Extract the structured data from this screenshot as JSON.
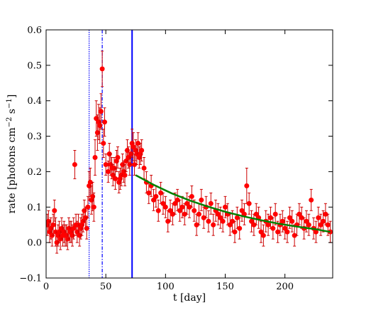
{
  "chart_data": {
    "type": "scatter",
    "title": "",
    "xlabel": "t [day]",
    "ylabel_parts": {
      "base": "rate [photons cm",
      "exp1": "−2",
      "mid": " s",
      "exp2": "−1",
      "end": "]"
    },
    "xlim": [
      0,
      240
    ],
    "ylim": [
      -0.1,
      0.6
    ],
    "xticks": [
      0,
      50,
      100,
      150,
      200
    ],
    "xtick_labels": [
      "0",
      "50",
      "100",
      "150",
      "200"
    ],
    "yticks": [
      -0.1,
      0.0,
      0.1,
      0.2,
      0.3,
      0.4,
      0.5,
      0.6
    ],
    "ytick_labels": [
      "−0.1",
      "0.0",
      "0.1",
      "0.2",
      "0.3",
      "0.4",
      "0.5",
      "0.6"
    ],
    "grid": false,
    "colors": {
      "points": "#ff0000",
      "errorbars": "#cc0000",
      "fit": "#008000",
      "vlines": "#0000ff"
    },
    "vlines": [
      {
        "x": 36,
        "style": "dotted"
      },
      {
        "x": 47,
        "style": "dashdot"
      },
      {
        "x": 72,
        "style": "solid"
      }
    ],
    "fit_curve": {
      "x": [
        75,
        90,
        105,
        120,
        135,
        150,
        165,
        180,
        195,
        210,
        225,
        238
      ],
      "y": [
        0.19,
        0.163,
        0.139,
        0.119,
        0.102,
        0.087,
        0.074,
        0.063,
        0.053,
        0.045,
        0.038,
        0.03
      ]
    },
    "series": [
      {
        "x": [
          1,
          2,
          3,
          4,
          5,
          6,
          7,
          8,
          9,
          10,
          11,
          12,
          13,
          14,
          15,
          16,
          17,
          18,
          19,
          20,
          21,
          22,
          23,
          24,
          25,
          26,
          27,
          28,
          29,
          30,
          31,
          32,
          33,
          34,
          35,
          36,
          37,
          38,
          39,
          40,
          41,
          42,
          43,
          44,
          45,
          46,
          47,
          48,
          49,
          50,
          52,
          53,
          54,
          55,
          56,
          57,
          58,
          59,
          60,
          61,
          62,
          63,
          64,
          65,
          66,
          67,
          68,
          69,
          70,
          71,
          72,
          73,
          74,
          75,
          76,
          77,
          78,
          79,
          80,
          82,
          84,
          86,
          88,
          90,
          92,
          94,
          96,
          98,
          100,
          102,
          104,
          106,
          108,
          110,
          112,
          114,
          116,
          118,
          120,
          122,
          124,
          126,
          128,
          130,
          132,
          134,
          136,
          138,
          140,
          142,
          144,
          146,
          148,
          150,
          152,
          154,
          156,
          158,
          160,
          162,
          164,
          166,
          168,
          170,
          172,
          174,
          176,
          178,
          180,
          182,
          184,
          186,
          188,
          190,
          192,
          194,
          196,
          198,
          200,
          202,
          204,
          206,
          208,
          210,
          212,
          214,
          216,
          218,
          220,
          222,
          224,
          226,
          228,
          230,
          232,
          234,
          236,
          238
        ],
        "y": [
          0.05,
          0.06,
          0.03,
          0.04,
          0.02,
          0.05,
          0.09,
          0.03,
          0.0,
          0.02,
          0.03,
          0.01,
          0.04,
          0.02,
          0.03,
          0.02,
          0.02,
          0.01,
          0.04,
          0.03,
          0.03,
          0.02,
          0.04,
          0.22,
          0.05,
          0.03,
          0.05,
          0.02,
          0.04,
          0.05,
          0.06,
          0.09,
          0.07,
          0.04,
          0.1,
          0.16,
          0.17,
          0.12,
          0.13,
          0.1,
          0.24,
          0.35,
          0.31,
          0.34,
          0.33,
          0.37,
          0.49,
          0.28,
          0.34,
          0.22,
          0.2,
          0.25,
          0.22,
          0.21,
          0.19,
          0.21,
          0.18,
          0.23,
          0.24,
          0.17,
          0.18,
          0.19,
          0.22,
          0.2,
          0.19,
          0.23,
          0.26,
          0.24,
          0.22,
          0.25,
          0.28,
          0.27,
          0.22,
          0.26,
          0.25,
          0.28,
          0.24,
          0.25,
          0.26,
          0.21,
          0.17,
          0.14,
          0.16,
          0.12,
          0.13,
          0.09,
          0.14,
          0.11,
          0.1,
          0.06,
          0.09,
          0.08,
          0.11,
          0.12,
          0.09,
          0.1,
          0.08,
          0.11,
          0.1,
          0.13,
          0.09,
          0.05,
          0.08,
          0.12,
          0.07,
          0.1,
          0.06,
          0.11,
          0.05,
          0.09,
          0.08,
          0.07,
          0.06,
          0.1,
          0.08,
          0.05,
          0.06,
          0.03,
          0.07,
          0.04,
          0.09,
          0.08,
          0.16,
          0.11,
          0.06,
          0.05,
          0.08,
          0.07,
          0.03,
          0.02,
          0.06,
          0.05,
          0.07,
          0.04,
          0.08,
          0.03,
          0.05,
          0.06,
          0.04,
          0.03,
          0.07,
          0.06,
          0.02,
          0.05,
          0.08,
          0.07,
          0.04,
          0.06,
          0.05,
          0.12,
          0.04,
          0.03,
          0.07,
          0.05,
          0.06,
          0.08,
          0.05,
          0.03
        ],
        "err": [
          0.03,
          0.03,
          0.03,
          0.03,
          0.03,
          0.03,
          0.03,
          0.04,
          0.03,
          0.03,
          0.03,
          0.03,
          0.03,
          0.03,
          0.03,
          0.03,
          0.03,
          0.03,
          0.03,
          0.03,
          0.03,
          0.03,
          0.03,
          0.04,
          0.03,
          0.03,
          0.03,
          0.03,
          0.03,
          0.03,
          0.03,
          0.03,
          0.03,
          0.03,
          0.03,
          0.04,
          0.04,
          0.04,
          0.04,
          0.04,
          0.05,
          0.05,
          0.05,
          0.05,
          0.05,
          0.05,
          0.05,
          0.04,
          0.04,
          0.03,
          0.03,
          0.03,
          0.03,
          0.03,
          0.03,
          0.03,
          0.03,
          0.03,
          0.03,
          0.03,
          0.03,
          0.03,
          0.03,
          0.03,
          0.03,
          0.03,
          0.03,
          0.03,
          0.03,
          0.03,
          0.04,
          0.04,
          0.03,
          0.03,
          0.03,
          0.03,
          0.03,
          0.03,
          0.03,
          0.03,
          0.03,
          0.03,
          0.03,
          0.03,
          0.03,
          0.03,
          0.03,
          0.03,
          0.03,
          0.03,
          0.03,
          0.03,
          0.03,
          0.03,
          0.03,
          0.03,
          0.03,
          0.03,
          0.03,
          0.03,
          0.03,
          0.03,
          0.03,
          0.03,
          0.03,
          0.03,
          0.03,
          0.03,
          0.03,
          0.03,
          0.03,
          0.03,
          0.03,
          0.03,
          0.03,
          0.03,
          0.03,
          0.03,
          0.03,
          0.03,
          0.03,
          0.03,
          0.05,
          0.03,
          0.03,
          0.03,
          0.03,
          0.03,
          0.03,
          0.03,
          0.03,
          0.03,
          0.03,
          0.03,
          0.03,
          0.03,
          0.03,
          0.03,
          0.03,
          0.03,
          0.03,
          0.03,
          0.03,
          0.03,
          0.03,
          0.03,
          0.03,
          0.03,
          0.03,
          0.03,
          0.03,
          0.03,
          0.03,
          0.03,
          0.03,
          0.03,
          0.03,
          0.03
        ]
      }
    ]
  }
}
